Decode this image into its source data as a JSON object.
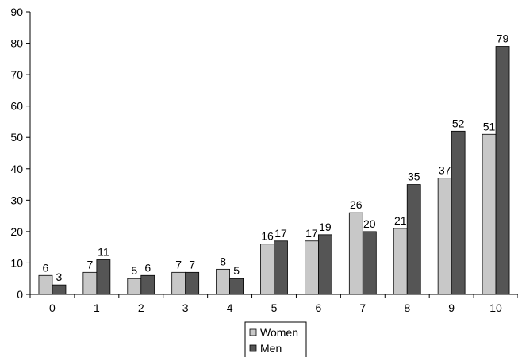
{
  "chart_data": {
    "type": "bar",
    "categories": [
      "0",
      "1",
      "2",
      "3",
      "4",
      "5",
      "6",
      "7",
      "8",
      "9",
      "10"
    ],
    "series": [
      {
        "name": "Women",
        "color": "#c8c8c8",
        "values": [
          6,
          7,
          5,
          7,
          8,
          16,
          17,
          26,
          21,
          37,
          51
        ]
      },
      {
        "name": "Men",
        "color": "#555555",
        "values": [
          3,
          11,
          6,
          7,
          5,
          17,
          19,
          20,
          35,
          52,
          79
        ]
      }
    ],
    "title": "",
    "xlabel": "",
    "ylabel": "",
    "ylim": [
      0,
      90
    ],
    "yticks": [
      0,
      10,
      20,
      30,
      40,
      50,
      60,
      70,
      80,
      90
    ],
    "grid": false,
    "legend_position": "bottom"
  }
}
